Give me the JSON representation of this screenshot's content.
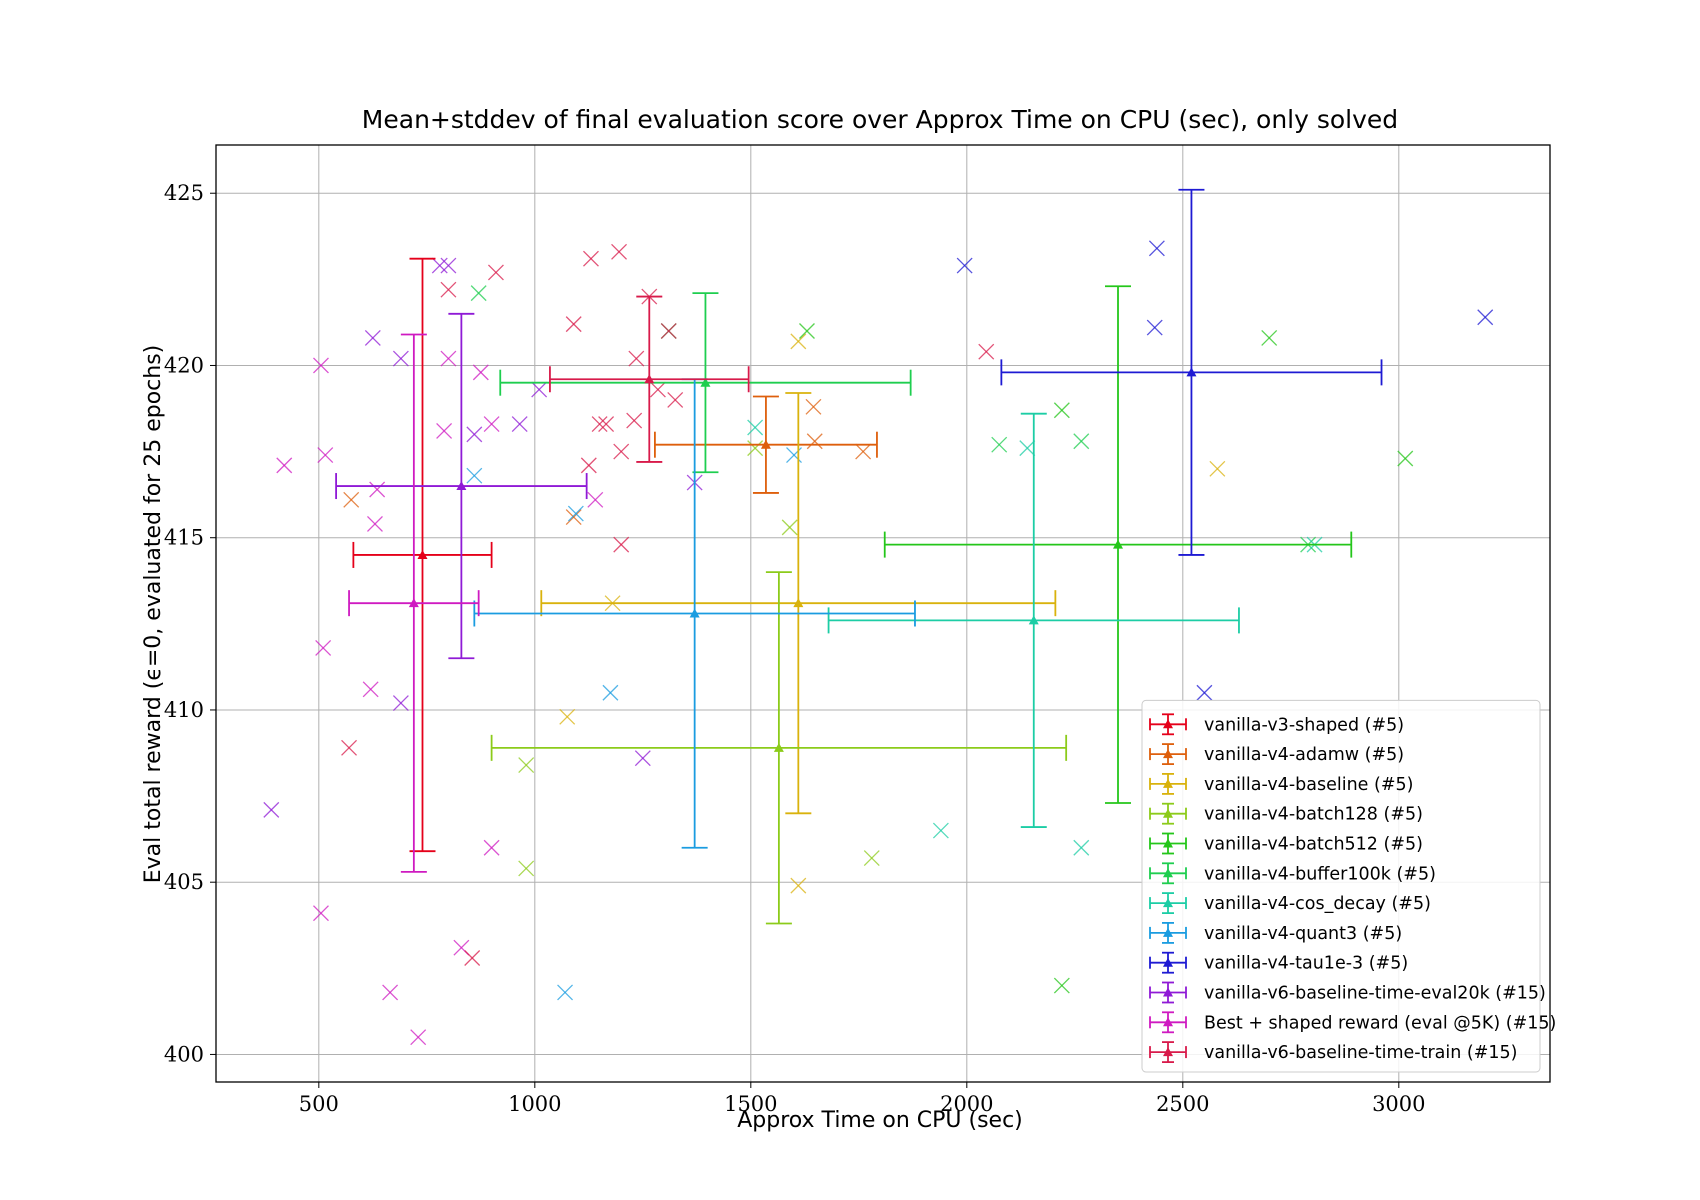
{
  "chart_data": {
    "type": "scatter",
    "title": "Mean+stddev of final evaluation score over Approx Time on CPU (sec), only solved",
    "xlabel": "Approx Time on CPU (sec)",
    "ylabel": "Eval total reward (ϵ=0, evaluated for 25 epochs)",
    "xlim": [
      262,
      3350
    ],
    "ylim": [
      399.2,
      426.4
    ],
    "xticks": [
      500,
      1000,
      1500,
      2000,
      2500,
      3000
    ],
    "yticks": [
      400,
      405,
      410,
      415,
      420,
      425
    ],
    "grid": true,
    "legend_position": "bottom-right",
    "series": [
      {
        "name": "vanilla-v3-shaped (#5)",
        "color": "#e5001a",
        "mean": {
          "x": 740,
          "y": 414.5,
          "xerr": 160,
          "yerr": 8.6
        },
        "points": []
      },
      {
        "name": "vanilla-v4-adamw (#5)",
        "color": "#de5f0c",
        "mean": {
          "x": 1535,
          "y": 417.7,
          "xerr": 257,
          "yerr": 1.4
        },
        "points": [
          [
            575,
            416.1
          ],
          [
            1090,
            415.6
          ],
          [
            1645,
            418.8
          ],
          [
            1648,
            417.8
          ],
          [
            1760,
            417.5
          ]
        ]
      },
      {
        "name": "vanilla-v4-baseline (#5)",
        "color": "#d9b20c",
        "mean": {
          "x": 1610,
          "y": 413.1,
          "xerr": 595,
          "yerr": 6.1
        },
        "points": [
          [
            1075,
            409.8
          ],
          [
            1180,
            413.1
          ],
          [
            1610,
            420.7
          ],
          [
            1610,
            404.9
          ],
          [
            2580,
            417.0
          ]
        ]
      },
      {
        "name": "vanilla-v4-batch128 (#5)",
        "color": "#8ccb1a",
        "mean": {
          "x": 1565,
          "y": 408.9,
          "xerr": 665,
          "yerr": 5.1
        },
        "points": [
          [
            980,
            408.4
          ],
          [
            980,
            405.4
          ],
          [
            1510,
            417.6
          ],
          [
            1590,
            415.3
          ],
          [
            1780,
            405.7
          ]
        ]
      },
      {
        "name": "vanilla-v4-batch512 (#5)",
        "color": "#24c61a",
        "mean": {
          "x": 2350,
          "y": 414.8,
          "xerr": 540,
          "yerr": 7.5
        },
        "points": [
          [
            1630,
            421.0
          ],
          [
            2220,
            418.7
          ],
          [
            2220,
            402.0
          ],
          [
            2700,
            420.8
          ],
          [
            3015,
            417.3
          ]
        ]
      },
      {
        "name": "vanilla-v4-buffer100k (#5)",
        "color": "#1ece4f",
        "mean": {
          "x": 1395,
          "y": 419.5,
          "xerr": 475,
          "yerr": 2.6
        },
        "points": [
          [
            870,
            422.1
          ],
          [
            1310,
            421.0
          ],
          [
            2075,
            417.7
          ],
          [
            2265,
            417.8
          ],
          [
            2790,
            414.8
          ]
        ]
      },
      {
        "name": "vanilla-v4-cos_decay (#5)",
        "color": "#1ccda5",
        "mean": {
          "x": 2155,
          "y": 412.6,
          "xerr": 475,
          "yerr": 6.0
        },
        "points": [
          [
            1940,
            406.5
          ],
          [
            2140,
            417.6
          ],
          [
            2265,
            406.0
          ],
          [
            1510,
            418.2
          ],
          [
            2805,
            414.8
          ]
        ]
      },
      {
        "name": "vanilla-v4-quant3 (#5)",
        "color": "#1a9ce0",
        "mean": {
          "x": 1370,
          "y": 412.8,
          "xerr": 510,
          "yerr": 6.8
        },
        "points": [
          [
            860,
            416.8
          ],
          [
            1175,
            410.5
          ],
          [
            1070,
            401.8
          ],
          [
            1600,
            417.4
          ],
          [
            1095,
            415.7
          ]
        ]
      },
      {
        "name": "vanilla-v4-tau1e-3 (#5)",
        "color": "#1e1ad3",
        "mean": {
          "x": 2520,
          "y": 419.8,
          "xerr": 440,
          "yerr": 5.3
        },
        "points": [
          [
            1995,
            422.9
          ],
          [
            2435,
            421.1
          ],
          [
            2440,
            423.4
          ],
          [
            2550,
            410.5
          ],
          [
            3200,
            421.4
          ]
        ]
      },
      {
        "name": "vanilla-v6-baseline-time-eval20k (#15)",
        "color": "#8f1ad6",
        "mean": {
          "x": 830,
          "y": 416.5,
          "xerr": 290,
          "yerr": 5.0
        },
        "points": [
          [
            390,
            407.1
          ],
          [
            625,
            420.8
          ],
          [
            690,
            420.2
          ],
          [
            690,
            410.2
          ],
          [
            780,
            422.9
          ],
          [
            800,
            422.9
          ],
          [
            860,
            418.0
          ],
          [
            965,
            418.3
          ],
          [
            1010,
            419.3
          ],
          [
            1370,
            416.6
          ],
          [
            1250,
            408.6
          ]
        ]
      },
      {
        "name": "Best + shaped reward (eval @5K) (#15)",
        "color": "#cf1ac1",
        "mean": {
          "x": 720,
          "y": 413.1,
          "xerr": 150,
          "yerr": 7.8
        },
        "points": [
          [
            420,
            417.1
          ],
          [
            505,
            420.0
          ],
          [
            505,
            404.1
          ],
          [
            510,
            411.8
          ],
          [
            515,
            417.4
          ],
          [
            620,
            410.6
          ],
          [
            630,
            415.4
          ],
          [
            635,
            416.4
          ],
          [
            665,
            401.8
          ],
          [
            730,
            400.5
          ],
          [
            790,
            418.1
          ],
          [
            800,
            420.2
          ],
          [
            830,
            403.1
          ],
          [
            875,
            419.8
          ],
          [
            900,
            418.3
          ],
          [
            900,
            406.0
          ],
          [
            1140,
            416.1
          ]
        ]
      },
      {
        "name": "vanilla-v6-baseline-time-train (#15)",
        "color": "#d81a4a",
        "mean": {
          "x": 1265,
          "y": 419.6,
          "xerr": 230,
          "yerr": 2.4
        },
        "points": [
          [
            570,
            408.9
          ],
          [
            800,
            422.2
          ],
          [
            855,
            402.8
          ],
          [
            910,
            422.7
          ],
          [
            1090,
            421.2
          ],
          [
            1125,
            417.1
          ],
          [
            1130,
            423.1
          ],
          [
            1150,
            418.3
          ],
          [
            1165,
            418.3
          ],
          [
            1195,
            423.3
          ],
          [
            1200,
            417.5
          ],
          [
            1200,
            414.8
          ],
          [
            1230,
            418.4
          ],
          [
            1235,
            420.2
          ],
          [
            1265,
            422.0
          ],
          [
            1285,
            419.3
          ],
          [
            1310,
            421.0
          ],
          [
            1325,
            419.0
          ],
          [
            2045,
            420.4
          ]
        ]
      }
    ]
  }
}
